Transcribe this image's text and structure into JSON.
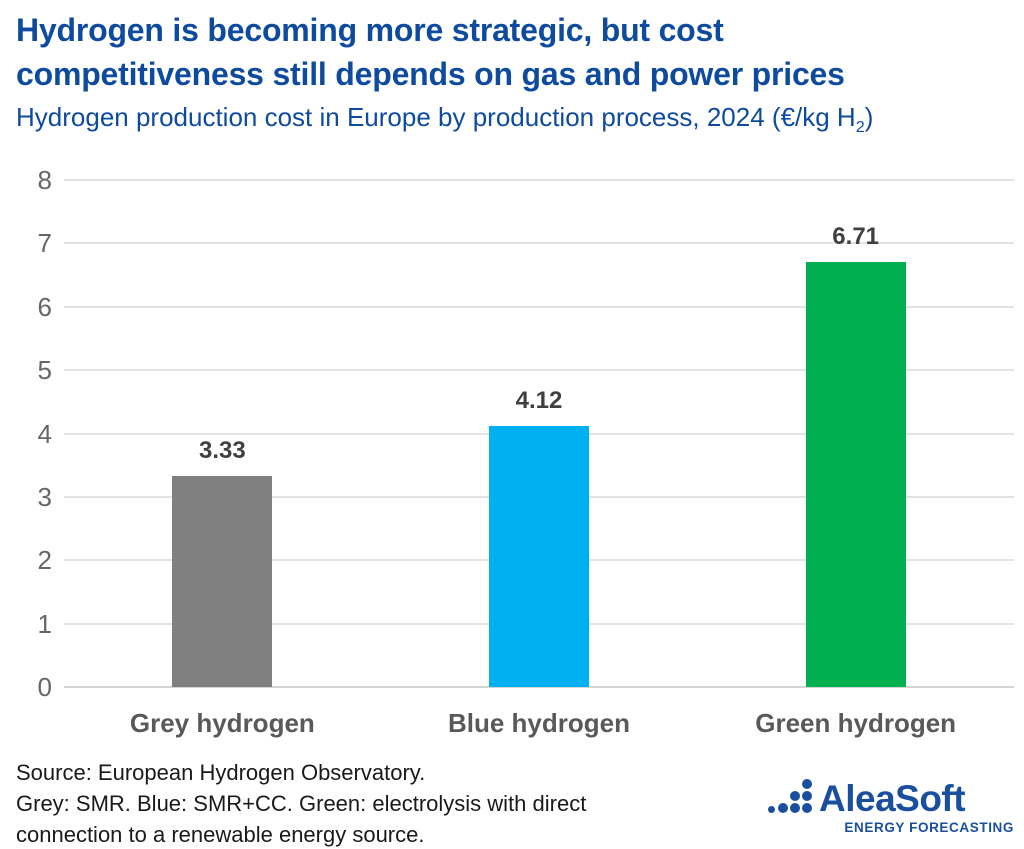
{
  "header": {
    "title_line1": "Hydrogen is becoming more strategic, but cost",
    "title_line2": "competitiveness still depends on gas and power prices",
    "subtitle_prefix": "Hydrogen production cost in Europe by production process, 2024 (€/kg H",
    "subtitle_subscript": "2",
    "subtitle_suffix": ")"
  },
  "chart_data": {
    "type": "bar",
    "title": "Hydrogen production cost in Europe by production process, 2024 (€/kg H2)",
    "categories": [
      "Grey hydrogen",
      "Blue hydrogen",
      "Green hydrogen"
    ],
    "values": [
      3.33,
      4.12,
      6.71
    ],
    "value_labels": [
      "3.33",
      "4.12",
      "6.71"
    ],
    "bar_colors": [
      "#808080",
      "#00B0F0",
      "#00B050"
    ],
    "xlabel": "",
    "ylabel": "",
    "ylim": [
      0,
      8
    ],
    "yticks": [
      0,
      1,
      2,
      3,
      4,
      5,
      6,
      7,
      8
    ],
    "grid": true,
    "legend": false
  },
  "footer": {
    "source_lines": [
      "Source: European Hydrogen Observatory.",
      "Grey: SMR. Blue: SMR+CC. Green: electrolysis with direct",
      "connection to a renewable energy source."
    ],
    "logo_text": "AleaSoft",
    "logo_tagline": "ENERGY FORECASTING"
  },
  "colors": {
    "title_blue": "#0E4B9F",
    "logo_blue": "#1A4F9F",
    "bar_grey": "#808080",
    "bar_blue": "#00B0F0",
    "bar_green": "#00B050",
    "grid_line": "#E3E3E3",
    "axis_line": "#D4D4D4",
    "tick_label": "#666666",
    "category_label": "#595959",
    "value_label": "#404040",
    "source_text": "#1A1A1A"
  }
}
